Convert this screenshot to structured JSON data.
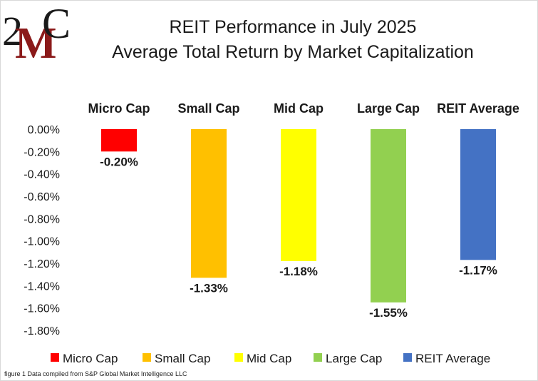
{
  "logo": {
    "text": "2MC"
  },
  "chart_data": {
    "type": "bar",
    "title": "REIT Performance  in July 2025",
    "subtitle": "Average Total Return by Market Capitalization",
    "categories": [
      "Micro Cap",
      "Small Cap",
      "Mid Cap",
      "Large Cap",
      "REIT Average"
    ],
    "values": [
      -0.2,
      -1.33,
      -1.18,
      -1.55,
      -1.17
    ],
    "data_labels": [
      "-0.20%",
      "-1.33%",
      "-1.18%",
      "-1.55%",
      "-1.17%"
    ],
    "colors": [
      "#ff0000",
      "#ffc000",
      "#ffff00",
      "#92d050",
      "#4472c4"
    ],
    "y_tick_labels": [
      "0.00%",
      "-0.20%",
      "-0.40%",
      "-0.60%",
      "-0.80%",
      "-1.00%",
      "-1.20%",
      "-1.40%",
      "-1.60%",
      "-1.80%"
    ],
    "ylim": [
      -1.8,
      0
    ],
    "y_unit": "%",
    "category_labels_position": "top",
    "grid": false,
    "legend": {
      "position": "bottom",
      "entries": [
        "Micro Cap",
        "Small Cap",
        "Mid Cap",
        "Large Cap",
        "REIT Average"
      ]
    }
  },
  "caption": "figure 1 Data compiled from S&P Global Market Intelligence LLC"
}
